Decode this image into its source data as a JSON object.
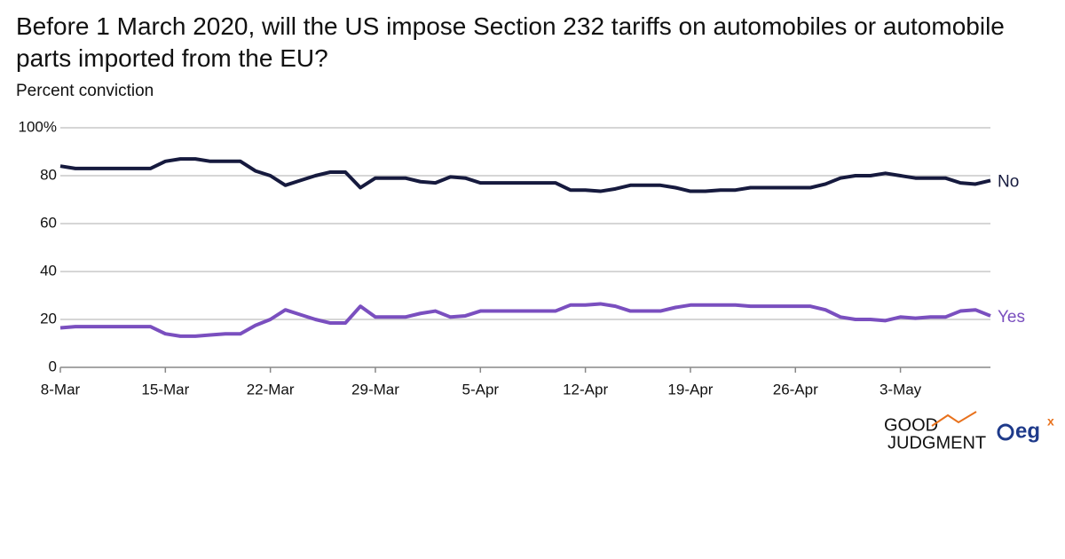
{
  "chart_data": {
    "type": "line",
    "title": "Before 1 March 2020, will the US impose Section 232 tariffs on automobiles or automobile parts imported from the EU?",
    "subtitle": "Percent conviction",
    "categories": [
      "8-Mar",
      null,
      null,
      null,
      null,
      null,
      null,
      "15-Mar",
      null,
      null,
      null,
      null,
      null,
      null,
      "22-Mar",
      null,
      null,
      null,
      null,
      null,
      null,
      "29-Mar",
      null,
      null,
      null,
      null,
      null,
      null,
      "5-Apr",
      null,
      null,
      null,
      null,
      null,
      null,
      "12-Apr",
      null,
      null,
      null,
      null,
      null,
      null,
      "19-Apr",
      null,
      null,
      null,
      null,
      null,
      null,
      "26-Apr",
      null,
      null,
      null,
      null,
      null,
      null,
      "3-May",
      null,
      null,
      null,
      null,
      null,
      null
    ],
    "series": [
      {
        "name": "No",
        "color": "#161a3e",
        "values": [
          84,
          83,
          83,
          83,
          83,
          83,
          83,
          86,
          87,
          87,
          86,
          86,
          86,
          82,
          80,
          76,
          78,
          80,
          81.5,
          81.5,
          75,
          79,
          79,
          79,
          77.5,
          77,
          79.5,
          79,
          77,
          77,
          77,
          77,
          77,
          77,
          74,
          74,
          73.5,
          74.5,
          76,
          76,
          76,
          75,
          73.5,
          73.5,
          74,
          74,
          75,
          75,
          75,
          75,
          75,
          76.5,
          79,
          80,
          80,
          81,
          80,
          79,
          79,
          79,
          77,
          76.5,
          78
        ]
      },
      {
        "name": "Yes",
        "color": "#7a4fbf",
        "values": [
          16.5,
          17,
          17,
          17,
          17,
          17,
          17,
          14,
          13,
          13,
          13.5,
          14,
          14,
          17.5,
          20,
          24,
          22,
          20,
          18.5,
          18.5,
          25.5,
          21,
          21,
          21,
          22.5,
          23.5,
          21,
          21.5,
          23.5,
          23.5,
          23.5,
          23.5,
          23.5,
          23.5,
          26,
          26,
          26.5,
          25.5,
          23.5,
          23.5,
          23.5,
          25,
          26,
          26,
          26,
          26,
          25.5,
          25.5,
          25.5,
          25.5,
          25.5,
          24,
          21,
          20,
          20,
          19.5,
          21,
          20.5,
          21,
          21,
          23.5,
          24,
          21.5
        ]
      }
    ],
    "ylim": [
      0,
      100
    ],
    "yticks": [
      0,
      20,
      40,
      60,
      80,
      {
        "value": 100,
        "label": "100%"
      }
    ],
    "grid": true,
    "logos": [
      "GOOD",
      "JUDGMENT",
      "eg",
      "x"
    ]
  }
}
